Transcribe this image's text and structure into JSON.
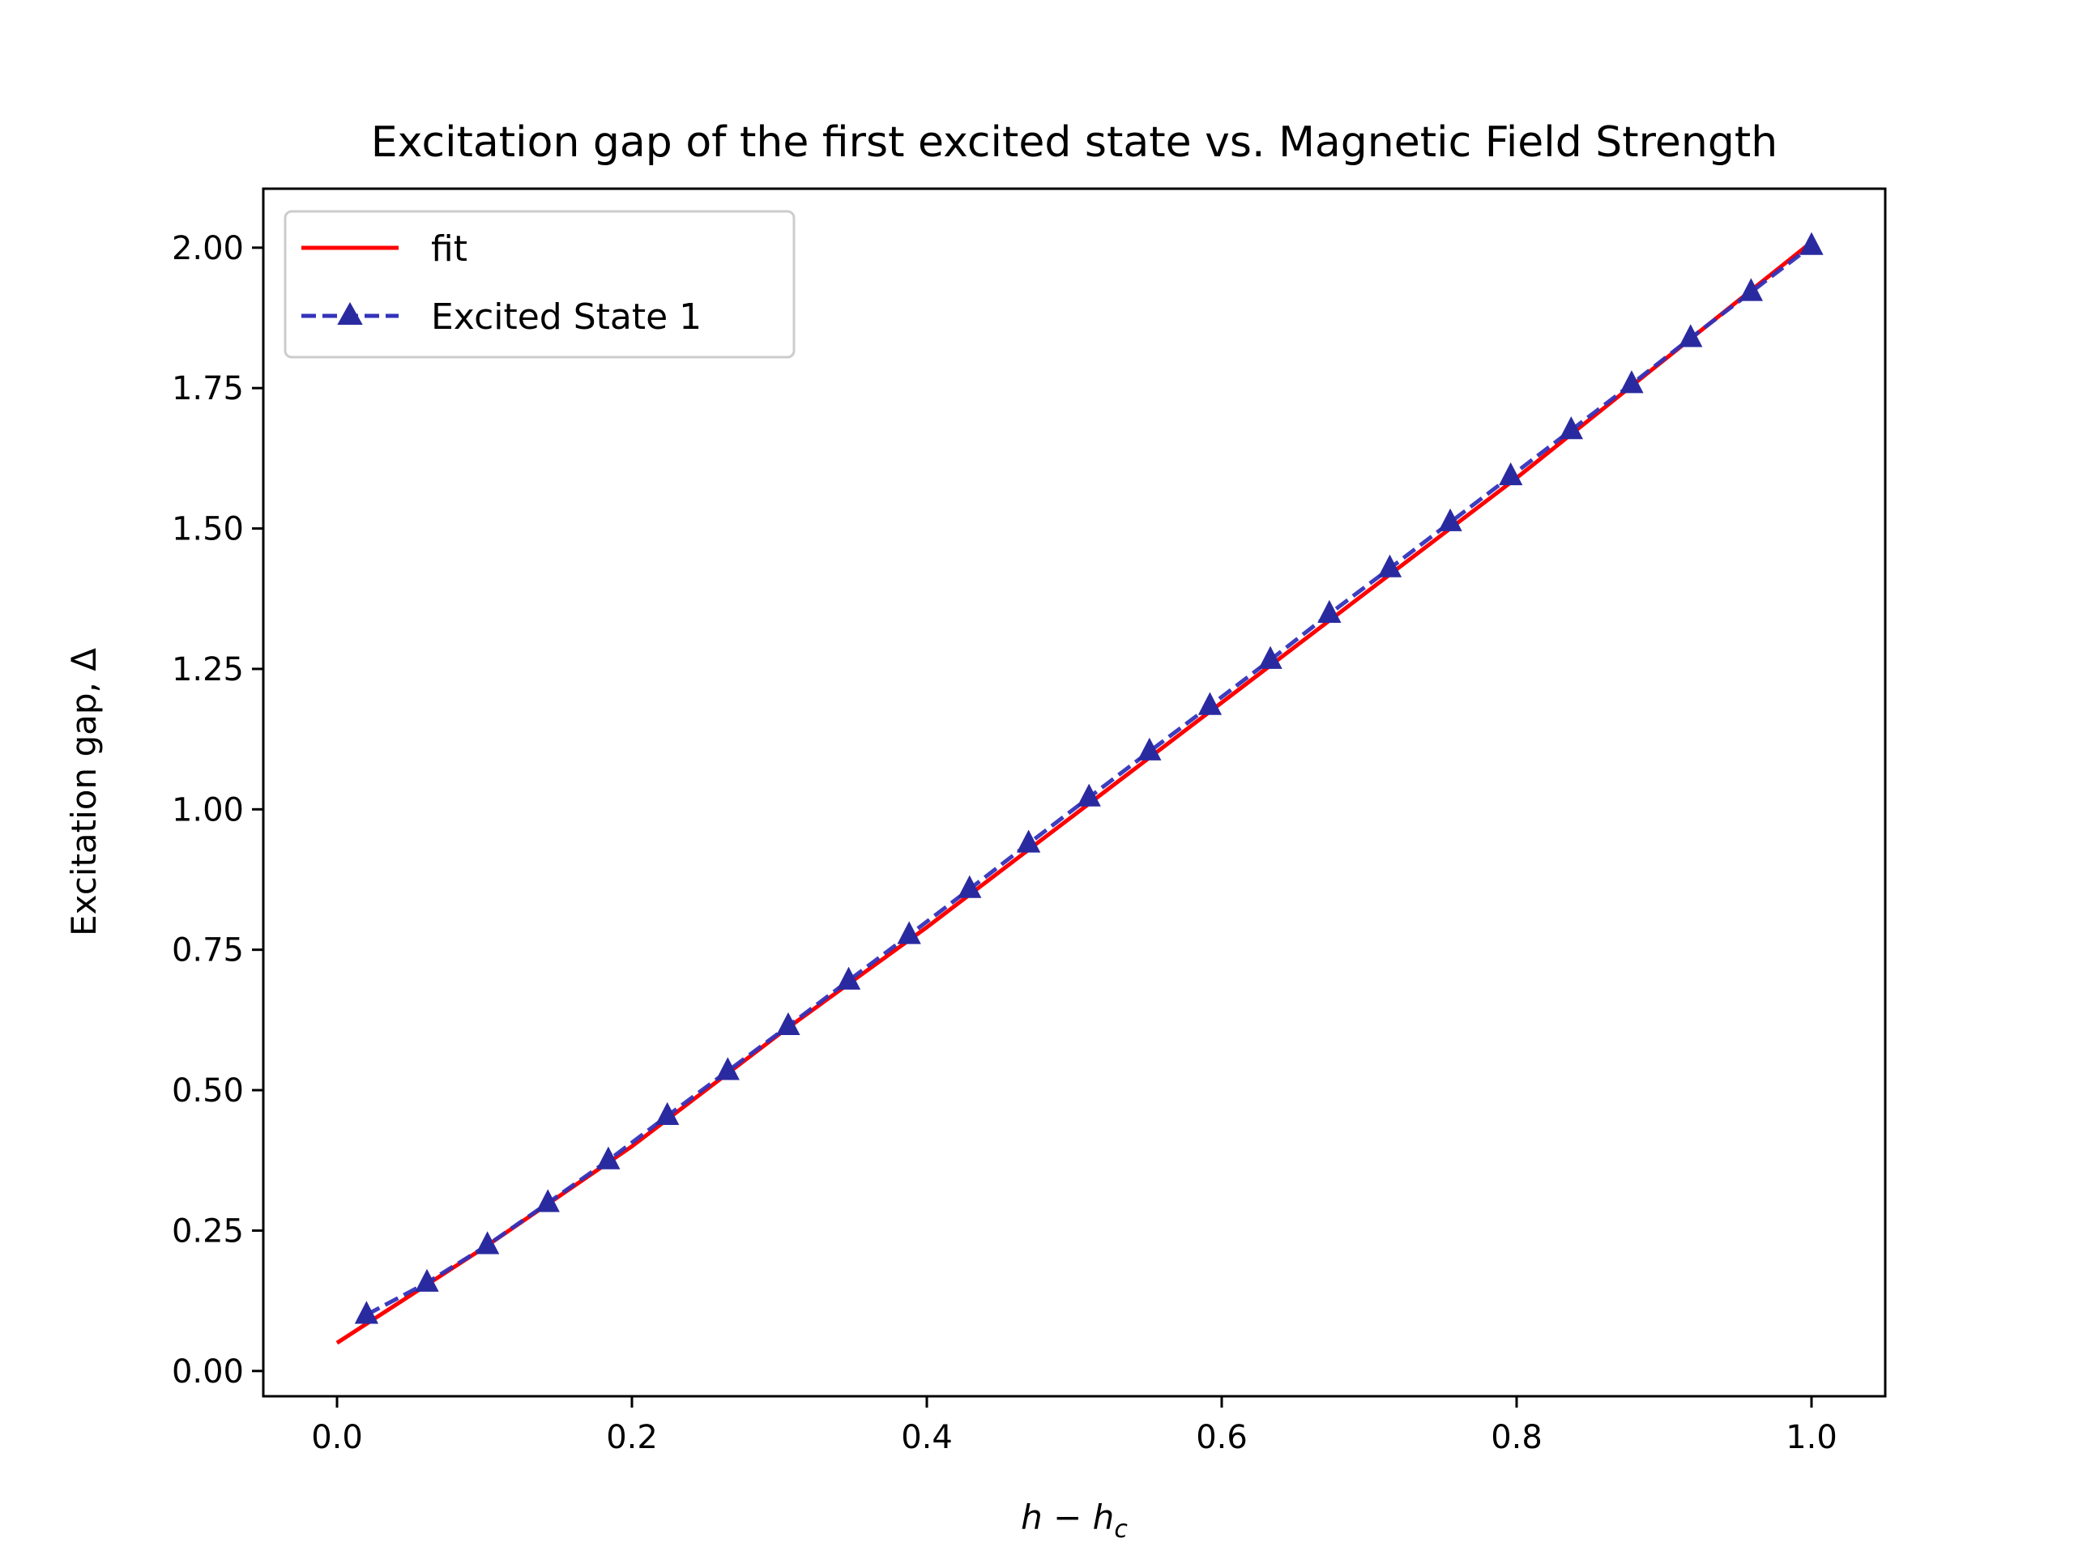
{
  "chart_data": {
    "type": "line",
    "title": "Excitation gap of the first excited state vs. Magnetic Field Strength",
    "xlabel": {
      "main": "h − h",
      "sub": "c"
    },
    "ylabel": "Excitation gap, Δ",
    "xlim": [
      -0.05,
      1.05
    ],
    "ylim": [
      -0.045,
      2.105
    ],
    "xticks": [
      0.0,
      0.2,
      0.4,
      0.6,
      0.8,
      1.0
    ],
    "xtick_labels": [
      "0.0",
      "0.2",
      "0.4",
      "0.6",
      "0.8",
      "1.0"
    ],
    "yticks": [
      0.0,
      0.25,
      0.5,
      0.75,
      1.0,
      1.25,
      1.5,
      1.75,
      2.0
    ],
    "ytick_labels": [
      "0.00",
      "0.25",
      "0.50",
      "0.75",
      "1.00",
      "1.25",
      "1.50",
      "1.75",
      "2.00"
    ],
    "grid": false,
    "legend_position": "top-left",
    "series": [
      {
        "name": "fit",
        "style": "solid",
        "marker": "none",
        "color": "#ff0000",
        "x": [
          0.0,
          0.1,
          0.2,
          0.3,
          0.4,
          0.5,
          0.6,
          0.7,
          0.8,
          0.9,
          1.0
        ],
        "y": [
          0.05,
          0.22,
          0.4,
          0.6,
          0.79,
          0.99,
          1.19,
          1.39,
          1.59,
          1.8,
          2.01
        ]
      },
      {
        "name": "Excited State 1",
        "style": "dashed",
        "marker": "triangle",
        "color": "#3333bb",
        "x": [
          0.02,
          0.061,
          0.102,
          0.143,
          0.184,
          0.224,
          0.265,
          0.306,
          0.347,
          0.388,
          0.429,
          0.469,
          0.51,
          0.551,
          0.592,
          0.633,
          0.673,
          0.714,
          0.755,
          0.796,
          0.837,
          0.878,
          0.918,
          0.959,
          1.0
        ],
        "y": [
          0.1,
          0.157,
          0.224,
          0.299,
          0.375,
          0.454,
          0.534,
          0.614,
          0.695,
          0.776,
          0.858,
          0.939,
          1.021,
          1.103,
          1.184,
          1.266,
          1.348,
          1.429,
          1.511,
          1.593,
          1.675,
          1.757,
          1.839,
          1.921,
          2.003
        ]
      }
    ]
  }
}
